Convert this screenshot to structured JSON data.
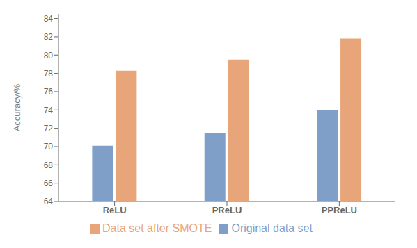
{
  "chart_data": {
    "type": "bar",
    "categories": [
      "ReLU",
      "PReLU",
      "PPReLU"
    ],
    "series": [
      {
        "name": "Original data set",
        "color": "#7f9fc9",
        "values": [
          70.1,
          71.5,
          74.0
        ]
      },
      {
        "name": "Data set after SMOTE",
        "color": "#e8a57a",
        "values": [
          78.3,
          79.5,
          81.8
        ]
      }
    ],
    "ylabel": "Accuracy/%",
    "ylim": [
      64,
      84.5
    ],
    "yticks": [
      64,
      66,
      68,
      70,
      72,
      74,
      76,
      78,
      80,
      82,
      84
    ],
    "grid": false,
    "legend": "bottom"
  }
}
